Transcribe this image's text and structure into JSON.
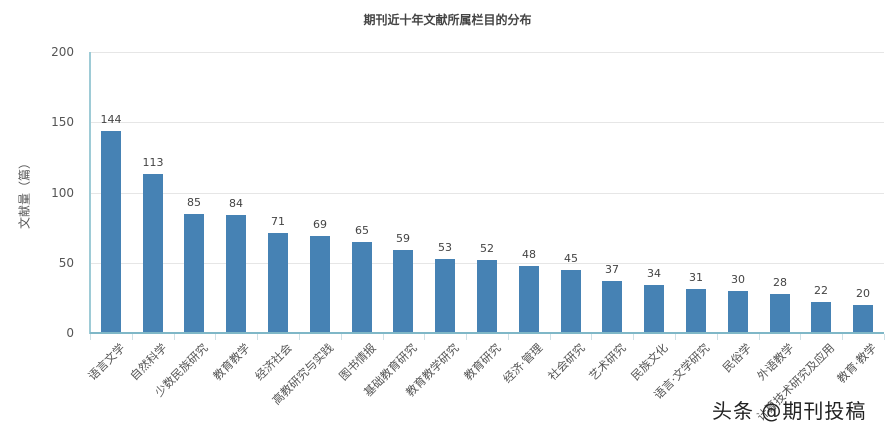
{
  "chart_data": {
    "type": "bar",
    "title": "期刊近十年文献所属栏目的分布",
    "xlabel": "",
    "ylabel": "文献量（篇）",
    "ylim": [
      0,
      200
    ],
    "yticks": [
      0,
      50,
      100,
      150,
      200
    ],
    "grid": true,
    "legend": null,
    "bar_color": "#4682b4",
    "categories": [
      "语言文学",
      "自然科学",
      "少数民族研究",
      "教育教学",
      "经济社会",
      "高教研究与实践",
      "图书情报",
      "基础教育研究",
      "教育教学研究",
      "教育研究",
      "经济·管理",
      "社会研究",
      "艺术研究",
      "民族文化",
      "语言·文学研究",
      "民俗学",
      "外语教学",
      "计算技术研究及应用",
      "教育·教学"
    ],
    "values": [
      144,
      113,
      85,
      84,
      71,
      69,
      65,
      59,
      53,
      52,
      48,
      45,
      37,
      34,
      31,
      30,
      28,
      22,
      20
    ]
  },
  "watermark": "头条 @期刊投稿"
}
